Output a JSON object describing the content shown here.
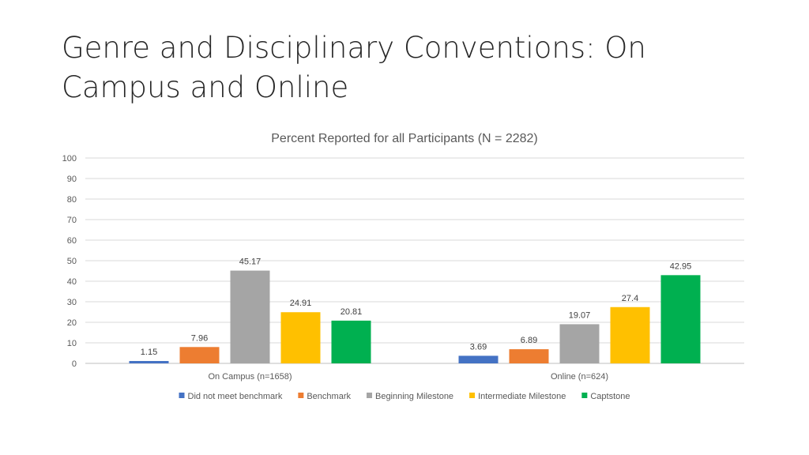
{
  "slide": {
    "title_line1": "Genre and Disciplinary Conventions: On",
    "title_line2": "Campus and Online"
  },
  "chart_data": {
    "type": "bar",
    "title": "Percent Reported for all Participants (N = 2282)",
    "xlabel": "",
    "ylabel": "",
    "ylim": [
      0,
      100
    ],
    "yticks": [
      0,
      10,
      20,
      30,
      40,
      50,
      60,
      70,
      80,
      90,
      100
    ],
    "grid": true,
    "legend_position": "bottom",
    "categories": [
      "On Campus (n=1658)",
      "Online (n=624)"
    ],
    "series": [
      {
        "name": "Did not meet benchmark",
        "color": "#4472C4",
        "values": [
          1.15,
          3.69
        ]
      },
      {
        "name": "Benchmark",
        "color": "#ED7D31",
        "values": [
          7.96,
          6.89
        ]
      },
      {
        "name": "Beginning Milestone",
        "color": "#A5A5A5",
        "values": [
          45.17,
          19.07
        ]
      },
      {
        "name": "Intermediate Milestone",
        "color": "#FFC000",
        "values": [
          24.91,
          27.4
        ]
      },
      {
        "name": "Captstone",
        "color": "#00B050",
        "values": [
          20.81,
          42.95
        ]
      }
    ]
  }
}
